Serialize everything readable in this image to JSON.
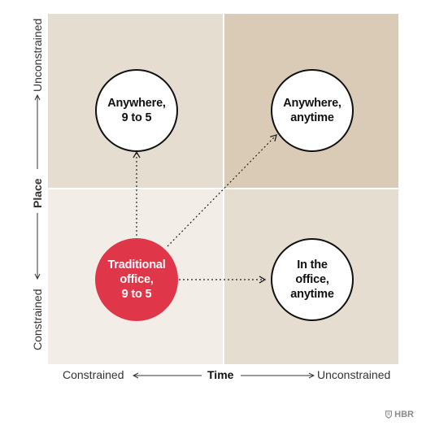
{
  "colors": {
    "top_left_bg": "#e5ddcf",
    "top_right_bg": "#d9cbb6",
    "bottom_left_bg": "#f2ede6",
    "bottom_right_bg": "#e5ddcf",
    "accent_red": "#e0364a",
    "line": "#222222"
  },
  "axes": {
    "x": {
      "title": "Time",
      "min_label": "Constrained",
      "max_label": "Unconstrained"
    },
    "y": {
      "title": "Place",
      "min_label": "Constrained",
      "max_label": "Unconstrained"
    }
  },
  "quadrants": {
    "top_left": {
      "label": "Anywhere,\n9 to 5"
    },
    "top_right": {
      "label": "Anywhere,\nanytime"
    },
    "bottom_left": {
      "label": "Traditional\noffice,\n9 to 5"
    },
    "bottom_right": {
      "label": "In the\noffice,\nanytime"
    }
  },
  "arrows": [
    {
      "from": "bottom_left",
      "to": "top_left",
      "style": "dotted"
    },
    {
      "from": "bottom_left",
      "to": "top_right",
      "style": "dotted"
    },
    {
      "from": "bottom_left",
      "to": "bottom_right",
      "style": "dotted"
    }
  ],
  "brand": {
    "name": "HBR",
    "icon": "shield-icon"
  }
}
